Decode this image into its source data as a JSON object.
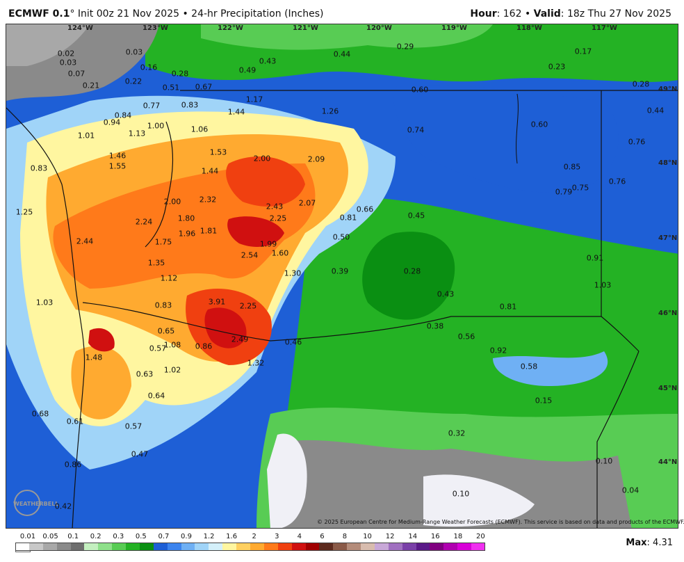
{
  "header": {
    "model": "ECMWF 0.1",
    "init_text": "° Init 00z 21 Nov 2025 • 24-hr Precipitation (Inches)",
    "hour_label": "Hour",
    "hour_value": ": 162 • ",
    "valid_label": "Valid",
    "valid_value": ": 18z Thu 27 Nov 2025"
  },
  "map": {
    "longitude_labels": [
      "124°W",
      "123°W",
      "122°W",
      "121°W",
      "120°W",
      "119°W",
      "118°W",
      "117°W"
    ],
    "latitude_labels": [
      "49°N",
      "48°N",
      "47°N",
      "46°N",
      "45°N",
      "44°N"
    ],
    "values": [
      "0.02",
      "0.03",
      "0.03",
      "0.07",
      "0.21",
      "0.22",
      "0.16",
      "0.28",
      "0.51",
      "0.67",
      "0.49",
      "0.43",
      "0.44",
      "0.29",
      "0.17",
      "0.23",
      "0.28",
      "0.44",
      "0.60",
      "0.77",
      "0.83",
      "1.17",
      "1.44",
      "1.26",
      "0.94",
      "0.84",
      "1.13",
      "1.00",
      "1.06",
      "1.01",
      "1.46",
      "1.55",
      "0.83",
      "1.53",
      "2.00",
      "2.09",
      "0.74",
      "0.60",
      "0.76",
      "0.85",
      "0.79",
      "0.75",
      "0.76",
      "1.25",
      "1.44",
      "2.00",
      "2.32",
      "2.24",
      "1.80",
      "1.96",
      "1.81",
      "2.43",
      "2.25",
      "2.07",
      "0.66",
      "0.81",
      "0.45",
      "0.50",
      "2.44",
      "1.75",
      "1.99",
      "2.54",
      "1.60",
      "1.35",
      "1.12",
      "1.30",
      "0.39",
      "0.28",
      "0.91",
      "1.03",
      "0.43",
      "1.03",
      "0.83",
      "3.91",
      "2.25",
      "0.81",
      "0.38",
      "0.65",
      "0.57",
      "1.08",
      "0.86",
      "2.49",
      "0.46",
      "0.56",
      "0.92",
      "0.58",
      "1.48",
      "0.63",
      "1.02",
      "1.32",
      "0.64",
      "0.15",
      "0.68",
      "0.61",
      "0.57",
      "0.32",
      "0.47",
      "0.86",
      "0.10",
      "0.04",
      "0.42",
      "0.10"
    ],
    "copyright": "© 2025 European Centre for Medium-Range Weather Forecasts (ECMWF). This service is based on data and products of the ECMWF.",
    "logo_text": "WEATHERBELL"
  },
  "legend": {
    "ticks": [
      "0.01",
      "0.05",
      "0.1",
      "0.2",
      "0.3",
      "0.5",
      "0.7",
      "0.9",
      "1.2",
      "1.6",
      "2",
      "3",
      "4",
      "6",
      "8",
      "10",
      "12",
      "14",
      "16",
      "18",
      "20"
    ],
    "colors": [
      "#ffffff",
      "#c8c8c8",
      "#a8a8a8",
      "#8a8a8a",
      "#6e6e6e",
      "#c4f0c0",
      "#8ee08a",
      "#58cc54",
      "#24b224",
      "#0a8f12",
      "#1e5fd6",
      "#3c84ee",
      "#6fb0f4",
      "#a0d4f8",
      "#d4f0fa",
      "#fff6a0",
      "#ffd060",
      "#ffaa30",
      "#ff7a1a",
      "#f04010",
      "#d01010",
      "#a00000",
      "#5c2a1e",
      "#8a5a48",
      "#b48c7a",
      "#d8bcae",
      "#c8a8d8",
      "#a070c0",
      "#7a40a8",
      "#5a1a88",
      "#800080",
      "#b000b0",
      "#d800d8",
      "#f030f0"
    ],
    "max_label": "Max",
    "max_value": ": 4.31"
  }
}
